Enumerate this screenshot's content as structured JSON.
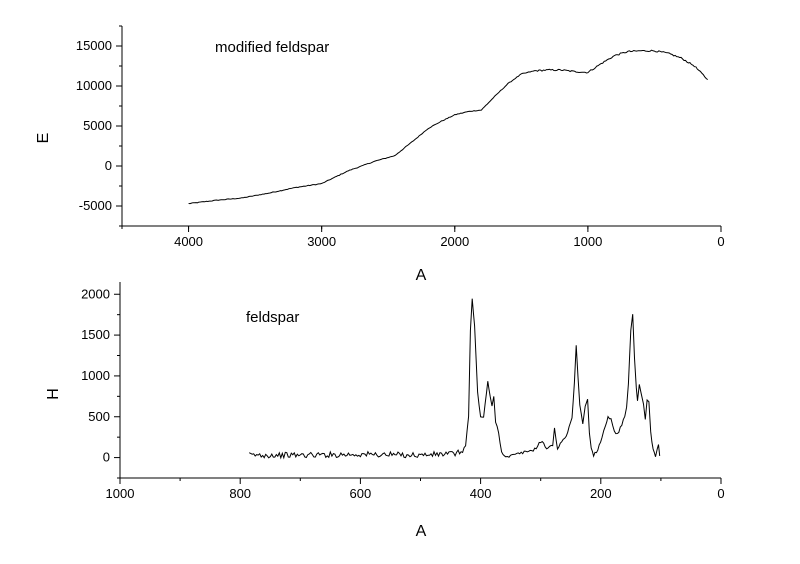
{
  "chart_data": [
    {
      "type": "line",
      "annotation": "modified feldspar",
      "xlabel": "A",
      "ylabel": "E",
      "xlim": [
        4500,
        0
      ],
      "ylim": [
        -7500,
        17500
      ],
      "xticks": [
        4000,
        3000,
        2000,
        1000,
        0
      ],
      "yticks": [
        -5000,
        0,
        5000,
        10000,
        15000
      ],
      "grid": false,
      "series": [
        {
          "x": [
            4000,
            3800,
            3600,
            3400,
            3200,
            3000,
            2800,
            2600,
            2450,
            2300,
            2200,
            2100,
            2000,
            1900,
            1800,
            1700,
            1600,
            1500,
            1400,
            1300,
            1200,
            1100,
            1000,
            900,
            800,
            700,
            600,
            500,
            400,
            300,
            200,
            100
          ],
          "y": [
            -4700,
            -4300,
            -4000,
            -3400,
            -2700,
            -2200,
            -600,
            600,
            1300,
            3300,
            4700,
            5600,
            6400,
            6800,
            7000,
            8700,
            10300,
            11500,
            11900,
            12000,
            12000,
            11800,
            11700,
            12800,
            13800,
            14300,
            14400,
            14400,
            14100,
            13500,
            12500,
            10800
          ]
        }
      ]
    },
    {
      "type": "line",
      "annotation": "feldspar",
      "xlabel": "A",
      "ylabel": "H",
      "xlim": [
        1000,
        0
      ],
      "ylim": [
        -250,
        2150
      ],
      "xticks": [
        1000,
        800,
        600,
        400,
        200,
        0
      ],
      "yticks": [
        0,
        500,
        1000,
        1500,
        2000
      ],
      "grid": false,
      "series": [
        {
          "x": [
            785,
            700,
            600,
            500,
            440,
            430,
            425,
            420,
            417,
            414,
            410,
            405,
            400,
            395,
            390,
            388,
            384,
            381,
            378,
            375,
            370,
            365,
            358,
            345,
            330,
            310,
            300,
            290,
            280,
            277,
            272,
            265,
            255,
            248,
            244,
            241,
            238,
            235,
            230,
            226,
            222,
            219,
            216,
            212,
            205,
            198,
            192,
            188,
            183,
            180,
            175,
            170,
            165,
            160,
            157,
            154,
            150,
            147,
            144,
            141,
            139,
            136,
            133,
            129,
            126,
            123,
            120,
            117,
            113,
            109,
            106,
            104,
            102
          ],
          "y": [
            30,
            30,
            40,
            30,
            50,
            80,
            150,
            500,
            1550,
            1950,
            1600,
            800,
            500,
            500,
            800,
            920,
            750,
            620,
            750,
            450,
            300,
            80,
            0,
            30,
            60,
            100,
            200,
            120,
            150,
            350,
            120,
            180,
            300,
            500,
            900,
            1380,
            1000,
            650,
            420,
            620,
            720,
            300,
            120,
            30,
            100,
            250,
            400,
            500,
            480,
            370,
            300,
            320,
            400,
            500,
            600,
            900,
            1550,
            1750,
            1200,
            850,
            700,
            900,
            780,
            650,
            450,
            700,
            680,
            300,
            100,
            0,
            100,
            160,
            20
          ]
        }
      ]
    }
  ]
}
